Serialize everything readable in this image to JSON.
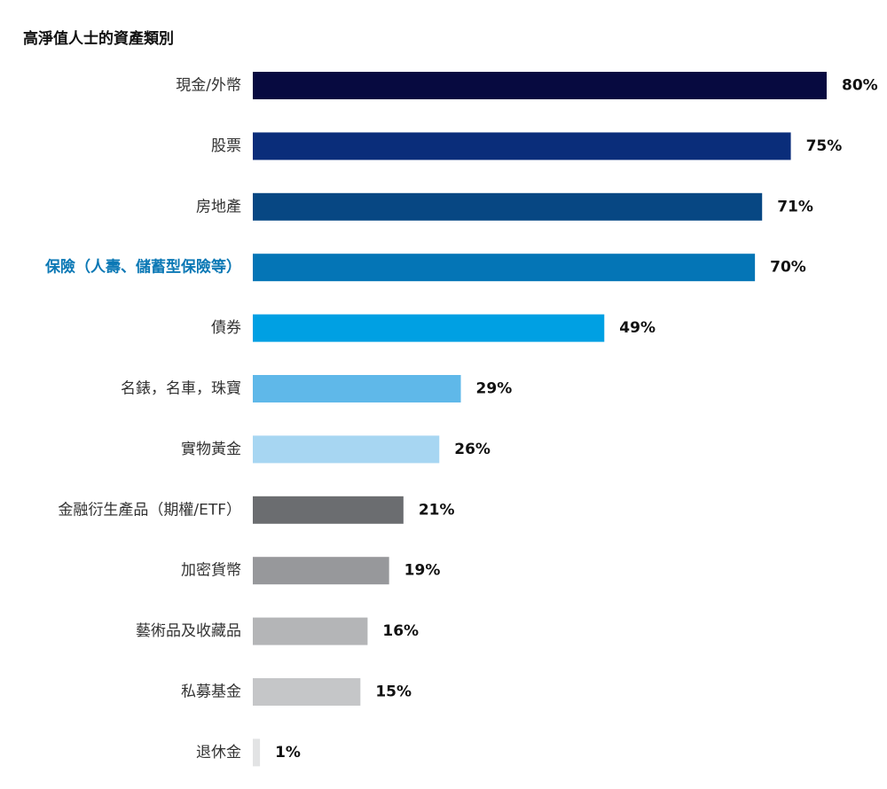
{
  "chart_data": {
    "type": "bar",
    "orientation": "horizontal",
    "title": "高淨值人士的資產類別",
    "xlabel": "",
    "ylabel": "",
    "xlim": [
      0,
      80
    ],
    "grid": false,
    "legend": "none",
    "unit": "%",
    "highlight_index": 3,
    "highlight_color": "#0b78b5",
    "categories": [
      "現金/外幣",
      "股票",
      "房地產",
      "保險（人壽、儲蓄型保險等）",
      "債券",
      "名錶，名車，珠寶",
      "實物黃金",
      "金融衍生產品（期權/ETF）",
      "加密貨幣",
      "藝術品及收藏品",
      "私募基金",
      "退休金"
    ],
    "values": [
      80,
      75,
      71,
      70,
      49,
      29,
      26,
      21,
      19,
      16,
      15,
      1
    ],
    "value_labels": [
      "80%",
      "75%",
      "71%",
      "70%",
      "49%",
      "29%",
      "26%",
      "21%",
      "19%",
      "16%",
      "15%",
      "1%"
    ],
    "colors": [
      "#070a40",
      "#0a2d7a",
      "#074783",
      "#0475b6",
      "#00a0e3",
      "#5fb8e9",
      "#a7d6f2",
      "#6b6d70",
      "#97989b",
      "#b4b5b7",
      "#c5c6c8",
      "#e2e3e4"
    ]
  }
}
